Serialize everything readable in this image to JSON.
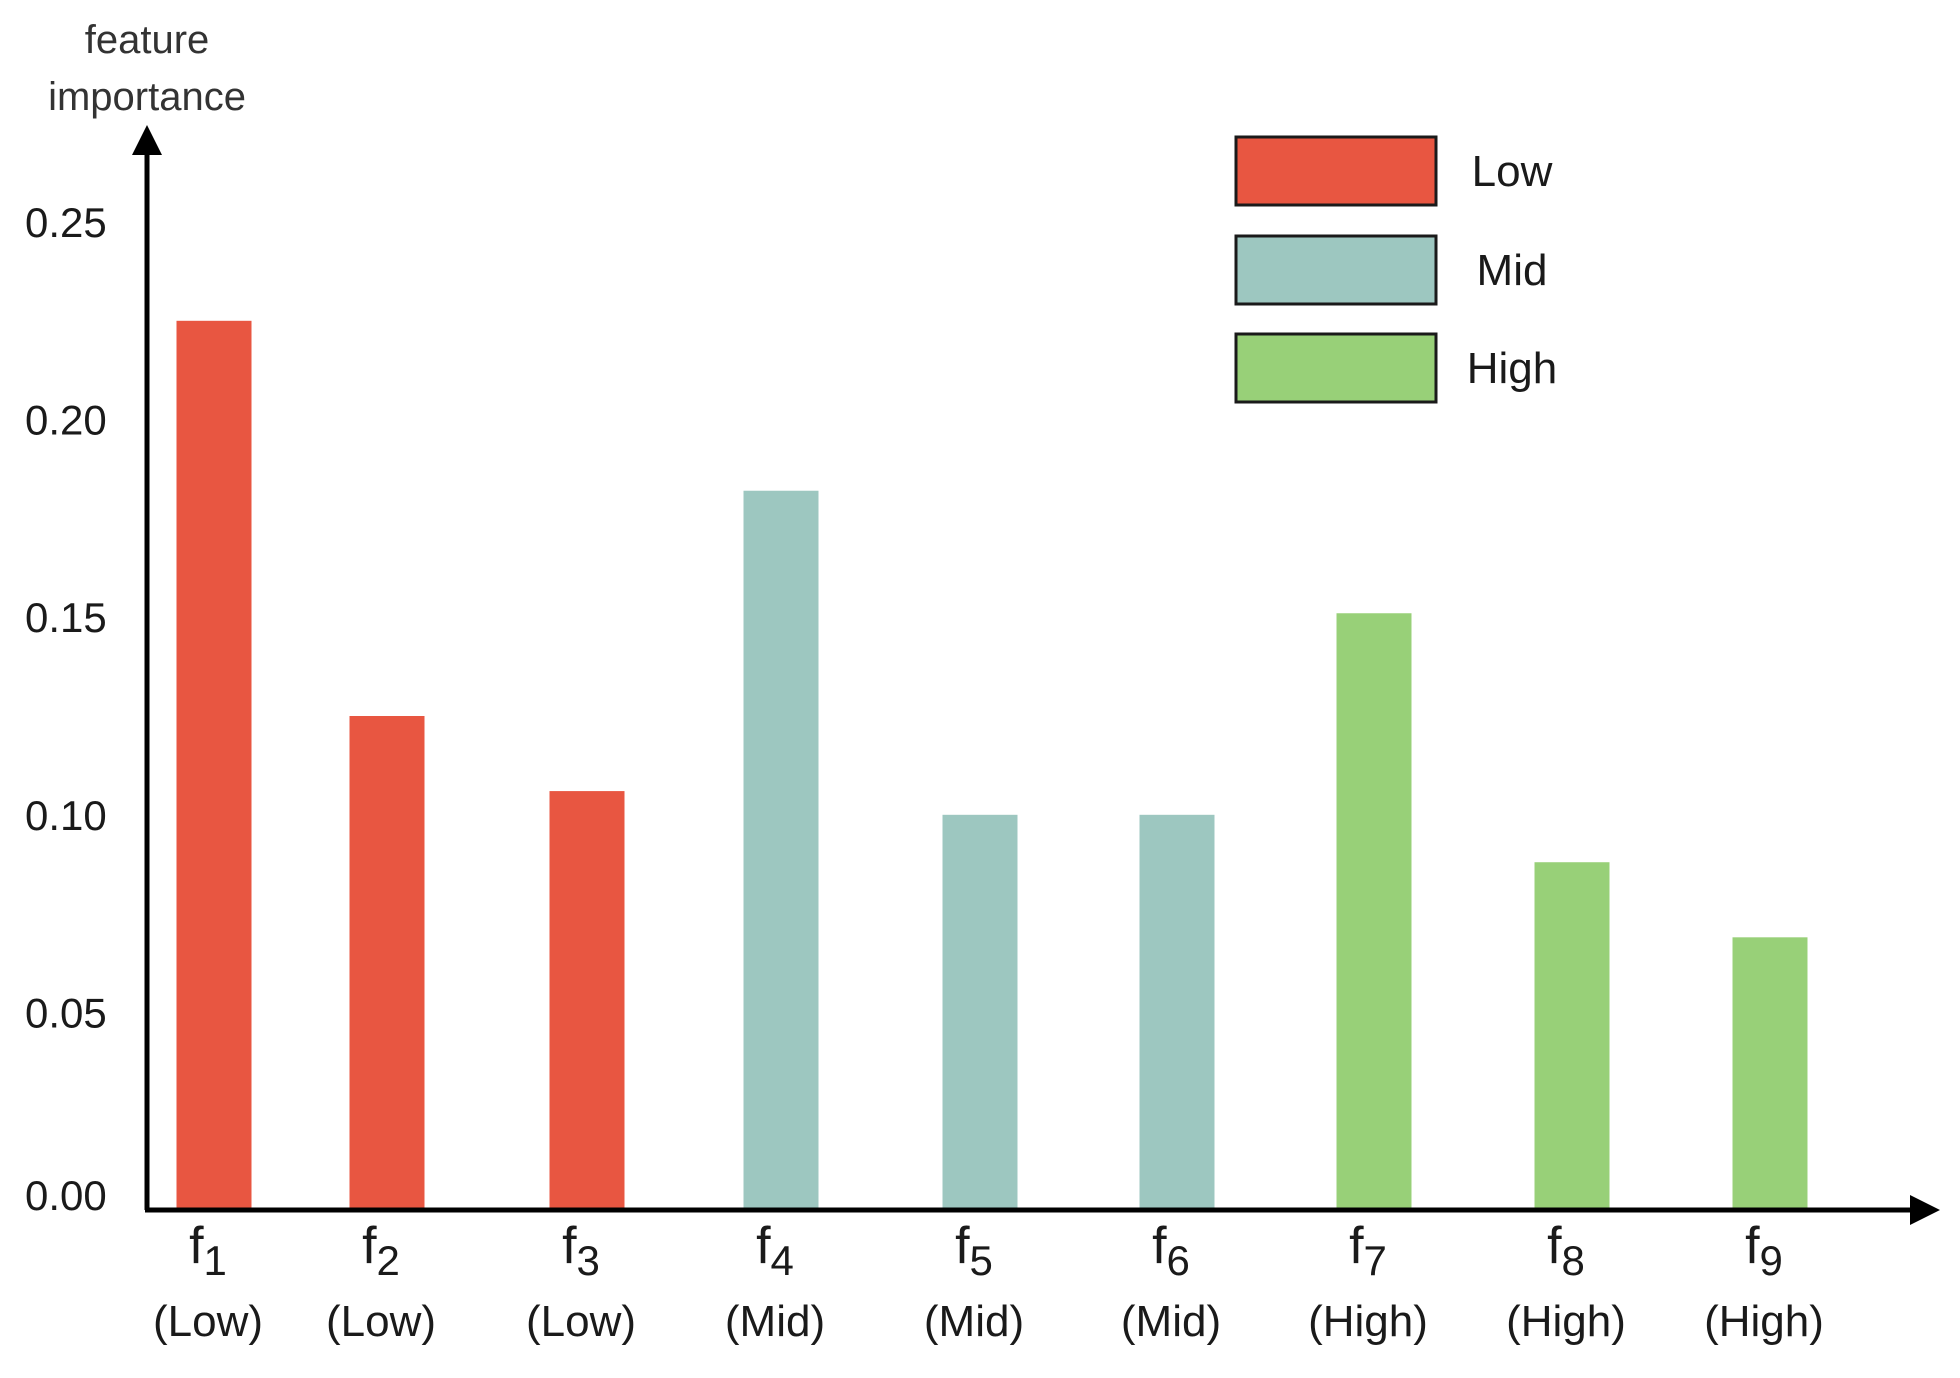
{
  "chart_data": {
    "type": "bar",
    "title": "",
    "ylabel_lines": [
      "feature",
      "importance"
    ],
    "xlabel": "",
    "ylim": [
      0,
      0.25
    ],
    "yticks": [
      "0.00",
      "0.05",
      "0.10",
      "0.15",
      "0.20",
      "0.25"
    ],
    "grid": false,
    "legend_position": "top-right",
    "categories": [
      {
        "base": "f",
        "sub": "1",
        "group_label": "(Low)",
        "group": "Low"
      },
      {
        "base": "f",
        "sub": "2",
        "group_label": "(Low)",
        "group": "Low"
      },
      {
        "base": "f",
        "sub": "3",
        "group_label": "(Low)",
        "group": "Low"
      },
      {
        "base": "f",
        "sub": "4",
        "group_label": "(Mid)",
        "group": "Mid"
      },
      {
        "base": "f",
        "sub": "5",
        "group_label": "(Mid)",
        "group": "Mid"
      },
      {
        "base": "f",
        "sub": "6",
        "group_label": "(Mid)",
        "group": "Mid"
      },
      {
        "base": "f",
        "sub": "7",
        "group_label": "(High)",
        "group": "High"
      },
      {
        "base": "f",
        "sub": "8",
        "group_label": "(High)",
        "group": "High"
      },
      {
        "base": "f",
        "sub": "9",
        "group_label": "(High)",
        "group": "High"
      }
    ],
    "values": [
      0.225,
      0.125,
      0.106,
      0.182,
      0.1,
      0.1,
      0.151,
      0.088,
      0.069
    ],
    "legend": [
      {
        "label": "Low",
        "color": "#e85641"
      },
      {
        "label": "Mid",
        "color": "#9dc7c0"
      },
      {
        "label": "High",
        "color": "#98d078"
      }
    ]
  }
}
